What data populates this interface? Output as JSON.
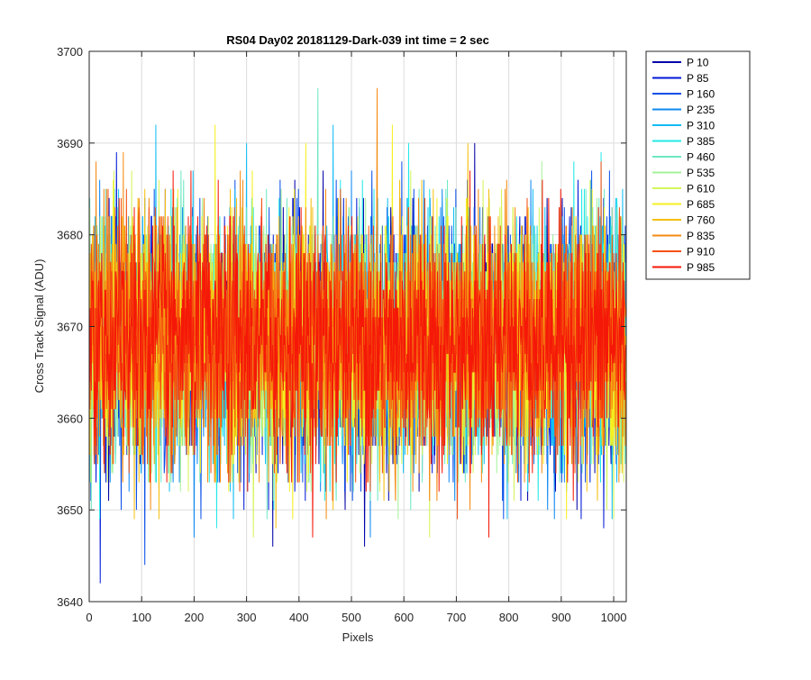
{
  "chart_data": {
    "type": "line",
    "title": "RS04 Day02 20181129-Dark-039 int time = 2 sec",
    "xlabel": "Pixels",
    "ylabel": "Cross Track Signal (ADU)",
    "xlim": [
      0,
      1024
    ],
    "ylim": [
      3640,
      3700
    ],
    "xticks": [
      0,
      100,
      200,
      300,
      400,
      500,
      600,
      700,
      800,
      900,
      1000
    ],
    "yticks": [
      3640,
      3650,
      3660,
      3670,
      3680,
      3690,
      3700
    ],
    "grid": true,
    "legend_placement": "outside-top-right",
    "signal_mean": 3668.5,
    "signal_spread": 6.5,
    "pixel_count": 1024,
    "series": [
      {
        "name": "P 10",
        "color": "#0000a8"
      },
      {
        "name": "P 85",
        "color": "#0018d8"
      },
      {
        "name": "P 160",
        "color": "#0a50e8"
      },
      {
        "name": "P 235",
        "color": "#0f88f2"
      },
      {
        "name": "P 310",
        "color": "#12bdf5"
      },
      {
        "name": "P 385",
        "color": "#22e8e8"
      },
      {
        "name": "P 460",
        "color": "#6ee8c4"
      },
      {
        "name": "P 535",
        "color": "#a6f29a"
      },
      {
        "name": "P 610",
        "color": "#d4f55a"
      },
      {
        "name": "P 685",
        "color": "#f5f020"
      },
      {
        "name": "P 760",
        "color": "#f5bf10"
      },
      {
        "name": "P 835",
        "color": "#f58a10"
      },
      {
        "name": "P 910",
        "color": "#f55010"
      },
      {
        "name": "P 985",
        "color": "#f51808"
      }
    ]
  }
}
